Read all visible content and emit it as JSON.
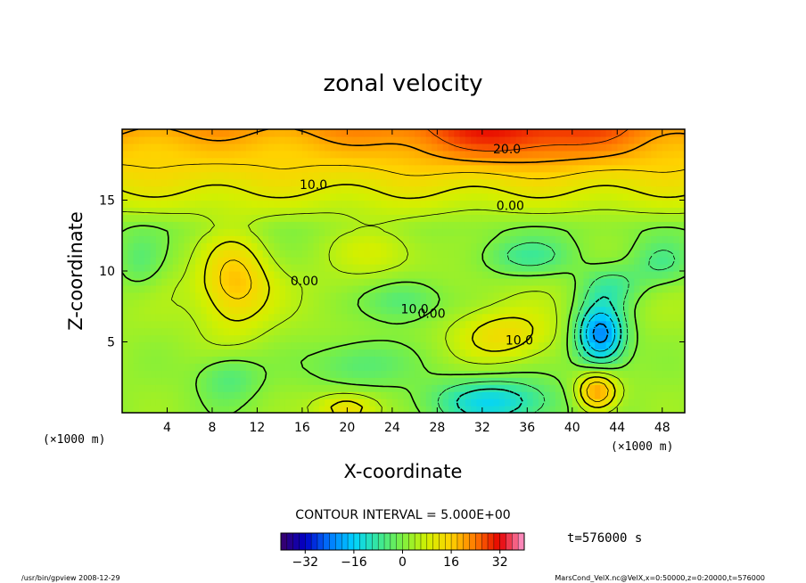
{
  "chart_data": {
    "type": "heatmap",
    "title": "zonal velocity",
    "xlabel": "X-coordinate",
    "ylabel": "Z-coordinate",
    "x_unit": "(×1000 m)",
    "y_unit": "(×1000 m)",
    "xlim": [
      0,
      50
    ],
    "ylim": [
      0,
      20
    ],
    "x_ticks": [
      4,
      8,
      12,
      16,
      20,
      24,
      28,
      32,
      36,
      40,
      44,
      48
    ],
    "y_ticks": [
      5,
      10,
      15
    ],
    "contour_labels": [
      {
        "text": "20.0",
        "x": 34.2,
        "y": 18.3
      },
      {
        "text": "10.0",
        "x": 17.0,
        "y": 15.8
      },
      {
        "text": "0.00",
        "x": 34.5,
        "y": 14.3
      },
      {
        "text": "0.00",
        "x": 16.2,
        "y": 9.0
      },
      {
        "text": "10.0",
        "x": 26.0,
        "y": 7.0
      },
      {
        "text": "0.00",
        "x": 27.5,
        "y": 6.7
      },
      {
        "text": "10.0",
        "x": 35.3,
        "y": 4.8
      }
    ],
    "field": {
      "base_profile": [
        [
          0,
          2
        ],
        [
          9,
          4
        ],
        [
          13,
          1
        ],
        [
          15,
          8
        ],
        [
          17,
          14
        ],
        [
          19,
          18
        ],
        [
          20,
          21
        ]
      ],
      "features": [
        {
          "x": 10,
          "z": 9.3,
          "sx": 2.2,
          "sz": 2.4,
          "amp": 14
        },
        {
          "x": 23,
          "z": 11.5,
          "sx": 3,
          "sz": 1.5,
          "amp": 6
        },
        {
          "x": 35,
          "z": 19.5,
          "sx": 7,
          "sz": 1.5,
          "amp": 10
        },
        {
          "x": 42.5,
          "z": 5.5,
          "sx": 1.6,
          "sz": 1.6,
          "amp": -26
        },
        {
          "x": 42.2,
          "z": 1.5,
          "sx": 1.3,
          "sz": 1.0,
          "amp": 20
        },
        {
          "x": 33,
          "z": 0.8,
          "sx": 4,
          "sz": 1.2,
          "amp": -16
        },
        {
          "x": 34,
          "z": 5.5,
          "sx": 3,
          "sz": 1.3,
          "amp": 10
        },
        {
          "x": 25,
          "z": 8.0,
          "sx": 2.5,
          "sz": 1.2,
          "amp": -10
        },
        {
          "x": 36,
          "z": 11.0,
          "sx": 3,
          "sz": 1.0,
          "amp": -9
        },
        {
          "x": 48,
          "z": 10.5,
          "sx": 2,
          "sz": 1.2,
          "amp": -8
        },
        {
          "x": 43.5,
          "z": 9.0,
          "sx": 2,
          "sz": 1.0,
          "amp": -9
        },
        {
          "x": 1.5,
          "z": 10.5,
          "sx": 1.5,
          "sz": 1.5,
          "amp": -6
        },
        {
          "x": 21,
          "z": 3.5,
          "sx": 3,
          "sz": 1.2,
          "amp": -8
        },
        {
          "x": 9.5,
          "z": 2.5,
          "sx": 2,
          "sz": 1.2,
          "amp": -8
        },
        {
          "x": 20,
          "z": 0.3,
          "sx": 2,
          "sz": 0.8,
          "amp": 12
        }
      ]
    },
    "colorbar": {
      "min": -40,
      "max": 40,
      "ticks": [
        -32,
        -16,
        0,
        16,
        32
      ],
      "tick_labels": [
        "−32",
        "−16",
        "0",
        "16",
        "32"
      ]
    },
    "colors": [
      "#3a0068",
      "#0000c8",
      "#0078ff",
      "#00d2ff",
      "#38e89a",
      "#7df040",
      "#d2f000",
      "#ffd200",
      "#ff7800",
      "#e60000",
      "#ff9ad2"
    ]
  },
  "annotations": {
    "contour_interval": "CONTOUR INTERVAL = 5.000E+00",
    "time": "t=576000 s",
    "footer_left": "/usr/bin/gpview 2008-12-29",
    "footer_right": "MarsCond_VelX.nc@VelX,x=0:50000,z=0:20000,t=576000"
  }
}
